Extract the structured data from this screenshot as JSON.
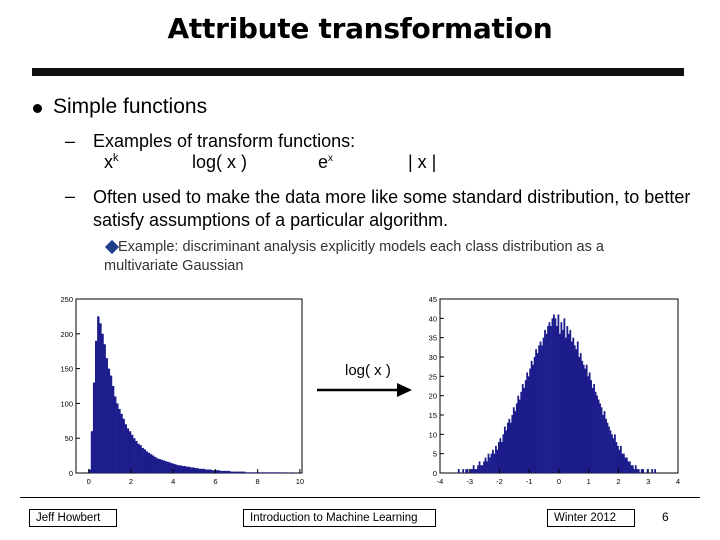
{
  "title": "Attribute transformation",
  "bullet": "Simple functions",
  "sub1": {
    "text": "Examples of transform functions:",
    "functions": [
      {
        "base": "x",
        "sup": "k"
      },
      {
        "base": "log( x )",
        "sup": ""
      },
      {
        "base": "e",
        "sup": "x"
      },
      {
        "base": "| x |",
        "sup": ""
      }
    ]
  },
  "sub2": {
    "text": "Often used to make the data more like some standard distribution, to better satisfy assumptions of a particular algorithm."
  },
  "example": "Example: discriminant analysis explicitly models each class distribution as a multivariate Gaussian",
  "dash": "–",
  "arrow_label": "log( x )",
  "footer": {
    "left": "Jeff Howbert",
    "middle": "Introduction to Machine Learning",
    "right": "Winter 2012",
    "page": "6"
  },
  "colors": {
    "bars": "#1c1c8c"
  },
  "chart_data": [
    {
      "type": "bar",
      "title": "",
      "xlabel": "",
      "ylabel": "",
      "x_ticks": [
        "0",
        "2",
        "4",
        "6",
        "8",
        "10"
      ],
      "y_ticks": [
        "0",
        "50",
        "100",
        "150",
        "200",
        "250"
      ],
      "xlim": [
        -0.6,
        10.1
      ],
      "ylim": [
        0,
        250
      ],
      "bin_width": 0.1,
      "x": [
        0.0,
        0.1,
        0.2,
        0.3,
        0.4,
        0.5,
        0.6,
        0.7,
        0.8,
        0.9,
        1.0,
        1.1,
        1.2,
        1.3,
        1.4,
        1.5,
        1.6,
        1.7,
        1.8,
        1.9,
        2.0,
        2.1,
        2.2,
        2.3,
        2.4,
        2.5,
        2.6,
        2.7,
        2.8,
        2.9,
        3.0,
        3.1,
        3.2,
        3.3,
        3.4,
        3.5,
        3.6,
        3.7,
        3.8,
        3.9,
        4.0,
        4.1,
        4.2,
        4.3,
        4.4,
        4.5,
        4.6,
        4.7,
        4.8,
        4.9,
        5.0,
        5.1,
        5.2,
        5.3,
        5.4,
        5.5,
        5.6,
        5.7,
        5.8,
        5.9,
        6.0,
        6.1,
        6.2,
        6.3,
        6.4,
        6.5,
        6.6,
        6.7,
        6.8,
        6.9,
        7.0,
        7.1,
        7.2,
        7.3,
        7.4,
        7.5,
        7.6,
        7.7,
        7.8,
        7.9,
        8.0,
        8.1,
        8.2,
        8.3,
        8.4,
        8.5,
        8.6,
        8.7,
        8.8,
        8.9,
        9.0,
        9.1,
        9.2,
        9.3,
        9.4,
        9.5,
        9.6,
        9.7,
        9.8,
        9.9
      ],
      "values": [
        5,
        60,
        130,
        190,
        225,
        215,
        200,
        185,
        165,
        150,
        140,
        125,
        110,
        100,
        92,
        85,
        78,
        70,
        64,
        60,
        55,
        50,
        46,
        42,
        40,
        36,
        34,
        31,
        29,
        27,
        25,
        23,
        21,
        20,
        19,
        18,
        17,
        16,
        15,
        14,
        13,
        12,
        11,
        11,
        10,
        10,
        9,
        9,
        8,
        8,
        7,
        7,
        6,
        6,
        6,
        5,
        5,
        5,
        4,
        4,
        4,
        4,
        3,
        3,
        3,
        3,
        3,
        2,
        2,
        2,
        2,
        2,
        2,
        2,
        1,
        1,
        1,
        1,
        1,
        1,
        1,
        1,
        1,
        1,
        1,
        1,
        1,
        1,
        1,
        1,
        1,
        1,
        0,
        1,
        0,
        0,
        1,
        0,
        0,
        1
      ]
    },
    {
      "type": "bar",
      "title": "",
      "xlabel": "",
      "ylabel": "",
      "x_ticks": [
        "-4",
        "-3",
        "-2",
        "-1",
        "0",
        "1",
        "2",
        "3",
        "4"
      ],
      "y_ticks": [
        "0",
        "5",
        "10",
        "15",
        "20",
        "25",
        "30",
        "35",
        "40",
        "45"
      ],
      "xlim": [
        -4,
        4
      ],
      "ylim": [
        0,
        45
      ],
      "bin_width": 0.05,
      "x": [
        -3.4,
        -3.35,
        -3.3,
        -3.25,
        -3.2,
        -3.15,
        -3.1,
        -3.05,
        -3.0,
        -2.95,
        -2.9,
        -2.85,
        -2.8,
        -2.75,
        -2.7,
        -2.65,
        -2.6,
        -2.55,
        -2.5,
        -2.45,
        -2.4,
        -2.35,
        -2.3,
        -2.25,
        -2.2,
        -2.15,
        -2.1,
        -2.05,
        -2.0,
        -1.95,
        -1.9,
        -1.85,
        -1.8,
        -1.75,
        -1.7,
        -1.65,
        -1.6,
        -1.55,
        -1.5,
        -1.45,
        -1.4,
        -1.35,
        -1.3,
        -1.25,
        -1.2,
        -1.15,
        -1.1,
        -1.05,
        -1.0,
        -0.95,
        -0.9,
        -0.85,
        -0.8,
        -0.75,
        -0.7,
        -0.65,
        -0.6,
        -0.55,
        -0.5,
        -0.45,
        -0.4,
        -0.35,
        -0.3,
        -0.25,
        -0.2,
        -0.15,
        -0.1,
        -0.05,
        0.0,
        0.05,
        0.1,
        0.15,
        0.2,
        0.25,
        0.3,
        0.35,
        0.4,
        0.45,
        0.5,
        0.55,
        0.6,
        0.65,
        0.7,
        0.75,
        0.8,
        0.85,
        0.9,
        0.95,
        1.0,
        1.05,
        1.1,
        1.15,
        1.2,
        1.25,
        1.3,
        1.35,
        1.4,
        1.45,
        1.5,
        1.55,
        1.6,
        1.65,
        1.7,
        1.75,
        1.8,
        1.85,
        1.9,
        1.95,
        2.0,
        2.05,
        2.1,
        2.15,
        2.2,
        2.25,
        2.3,
        2.35,
        2.4,
        2.45,
        2.5,
        2.55,
        2.6,
        2.65,
        2.7,
        2.75,
        2.8,
        2.85,
        2.9,
        2.95,
        3.0,
        3.05,
        3.1,
        3.15,
        3.2
      ],
      "values": [
        1,
        0,
        0,
        1,
        0,
        1,
        1,
        0,
        1,
        1,
        2,
        1,
        1,
        2,
        3,
        2,
        2,
        3,
        4,
        3,
        5,
        4,
        5,
        6,
        5,
        7,
        6,
        8,
        9,
        8,
        10,
        12,
        11,
        13,
        14,
        13,
        15,
        17,
        16,
        18,
        20,
        19,
        21,
        23,
        22,
        24,
        26,
        25,
        27,
        29,
        28,
        30,
        32,
        31,
        33,
        34,
        33,
        35,
        37,
        36,
        38,
        39,
        38,
        40,
        41,
        40,
        38,
        41,
        36,
        39,
        37,
        40,
        35,
        38,
        36,
        37,
        34,
        35,
        33,
        32,
        34,
        30,
        31,
        29,
        28,
        27,
        28,
        25,
        26,
        24,
        22,
        23,
        21,
        20,
        19,
        18,
        17,
        15,
        16,
        14,
        13,
        12,
        11,
        10,
        9,
        10,
        8,
        7,
        6,
        7,
        5,
        5,
        4,
        4,
        3,
        3,
        2,
        2,
        1,
        2,
        1,
        1,
        0,
        1,
        1,
        0,
        0,
        1,
        0,
        0,
        1,
        0,
        1
      ]
    }
  ]
}
